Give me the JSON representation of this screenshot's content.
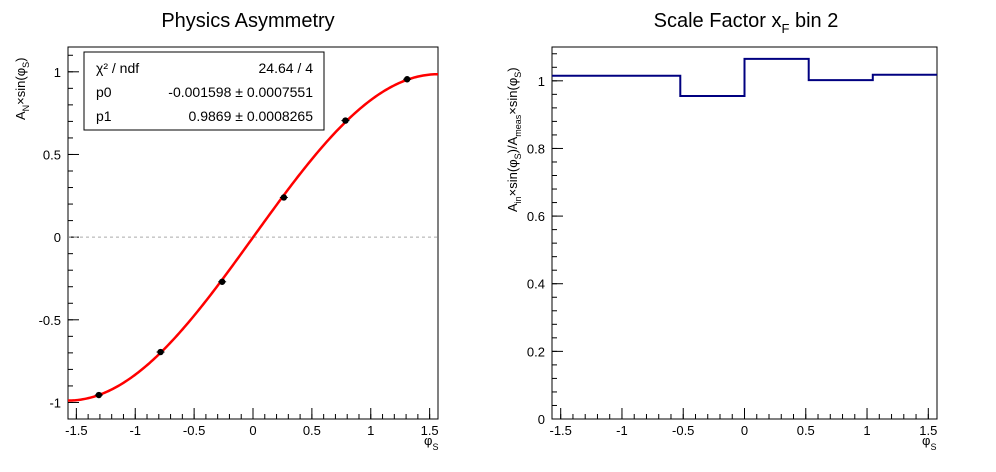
{
  "chart_data": [
    {
      "type": "scatter",
      "title": "Physics Asymmetry",
      "xlabel": "φ_S",
      "ylabel": "A_N×sin(φ_S)",
      "xlim": [
        -1.571,
        1.571
      ],
      "ylim": [
        -1.1,
        1.15
      ],
      "xticks": [
        -1.5,
        -1,
        -0.5,
        0,
        0.5,
        1,
        1.5
      ],
      "xtick_labels": [
        "-1.5",
        "-1",
        "-0.5",
        "0",
        "0.5",
        "1",
        "1.5"
      ],
      "yticks": [
        -1,
        -0.5,
        0,
        0.5,
        1
      ],
      "ytick_labels": [
        "-1",
        "-0.5",
        "0",
        "0.5",
        "1"
      ],
      "points": {
        "x": [
          -1.309,
          -0.785,
          -0.262,
          0.262,
          0.785,
          1.309
        ],
        "y": [
          -0.955,
          -0.695,
          -0.27,
          0.24,
          0.705,
          0.955
        ]
      },
      "fit": {
        "p0": -0.001598,
        "p1": 0.9869,
        "color": "#ff0000"
      },
      "zero_line": {
        "y": 0,
        "style": "dashed",
        "color": "#aaaaaa"
      },
      "stats": {
        "chi2_label": "χ² / ndf",
        "chi2_value": "24.64 / 4",
        "p0_label": "p0",
        "p0_value": "-0.001598 ± 0.0007551",
        "p1_label": "p1",
        "p1_value": "0.9869 ± 0.0008265"
      }
    },
    {
      "type": "histogram",
      "title": "Scale Factor x_F bin 2",
      "xlabel": "φ_S",
      "ylabel": "A_in×sin(φ_S)/A_meas×sin(φ_S)",
      "xlim": [
        -1.571,
        1.571
      ],
      "ylim": [
        0,
        1.1
      ],
      "xticks": [
        -1.5,
        -1,
        -0.5,
        0,
        0.5,
        1,
        1.5
      ],
      "xtick_labels": [
        "-1.5",
        "-1",
        "-0.5",
        "0",
        "0.5",
        "1",
        "1.5"
      ],
      "yticks": [
        0,
        0.2,
        0.4,
        0.6,
        0.8,
        1
      ],
      "ytick_labels": [
        "0",
        "0.2",
        "0.4",
        "0.6",
        "0.8",
        "1"
      ],
      "bin_edges": [
        -1.571,
        -0.524,
        0,
        0.524,
        1.047,
        1.571
      ],
      "values": [
        1.015,
        0.955,
        1.065,
        1.002,
        1.018
      ],
      "color": "#000080"
    }
  ]
}
